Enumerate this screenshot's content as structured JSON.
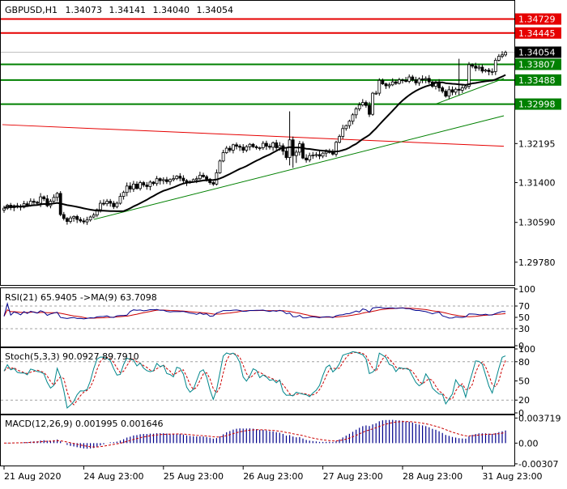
{
  "header": {
    "symbol": "GBPUSD,H1",
    "open": "1.34073",
    "high": "1.34141",
    "low": "1.34040",
    "close": "1.34054"
  },
  "chart_data": [
    {
      "type": "candlestick",
      "panel": "price",
      "ylim": [
        1.293,
        1.351
      ],
      "y_ticks": [
        "1.29780",
        "1.30590",
        "1.31400",
        "1.32195"
      ],
      "price_labels": [
        {
          "value": 1.34729,
          "text": "1.34729",
          "color": "#e60000",
          "kind": "resistance-line"
        },
        {
          "value": 1.34445,
          "text": "1.34445",
          "color": "#e60000",
          "kind": "resistance-line"
        },
        {
          "value": 1.34054,
          "text": "1.34054",
          "color": "#000000",
          "kind": "current-price"
        },
        {
          "value": 1.33807,
          "text": "1.33807",
          "color": "#008000",
          "kind": "support-line"
        },
        {
          "value": 1.33488,
          "text": "1.33488",
          "color": "#008000",
          "kind": "support-line"
        },
        {
          "value": 1.32998,
          "text": "1.32998",
          "color": "#008000",
          "kind": "support-line"
        }
      ],
      "trendlines": [
        {
          "color": "#e60000",
          "from": [
            -0.5,
            1.3258
          ],
          "to": [
            150.5,
            1.3214
          ]
        },
        {
          "color": "#008000",
          "from": [
            27,
            1.3065
          ],
          "to": [
            150.5,
            1.3276
          ]
        },
        {
          "color": "#008000",
          "from": [
            130,
            1.33
          ],
          "to": [
            150.5,
            1.3352
          ]
        }
      ],
      "closes": [
        1.3088,
        1.3094,
        1.3089,
        1.3093,
        1.3092,
        1.309,
        1.3097,
        1.3094,
        1.3102,
        1.31,
        1.3098,
        1.3111,
        1.3107,
        1.3093,
        1.3102,
        1.311,
        1.3118,
        1.3075,
        1.3067,
        1.3061,
        1.3068,
        1.3071,
        1.3065,
        1.3062,
        1.306,
        1.3064,
        1.307,
        1.3074,
        1.3085,
        1.3098,
        1.3097,
        1.3102,
        1.3098,
        1.3091,
        1.3098,
        1.3112,
        1.312,
        1.3133,
        1.3127,
        1.3137,
        1.3128,
        1.314,
        1.3135,
        1.3132,
        1.3141,
        1.3138,
        1.3148,
        1.3144,
        1.3146,
        1.3142,
        1.3146,
        1.3148,
        1.3153,
        1.3149,
        1.3144,
        1.314,
        1.3142,
        1.3146,
        1.3148,
        1.3155,
        1.3152,
        1.3147,
        1.314,
        1.3137,
        1.316,
        1.3184,
        1.3201,
        1.321,
        1.3206,
        1.3217,
        1.3214,
        1.3212,
        1.3206,
        1.3213,
        1.3218,
        1.3213,
        1.3211,
        1.3211,
        1.322,
        1.3214,
        1.3212,
        1.3221,
        1.3211,
        1.3215,
        1.3204,
        1.3191,
        1.3227,
        1.3195,
        1.3202,
        1.3219,
        1.319,
        1.3186,
        1.3195,
        1.3196,
        1.3197,
        1.3194,
        1.32,
        1.3203,
        1.3202,
        1.3198,
        1.3222,
        1.3234,
        1.325,
        1.3256,
        1.3265,
        1.3278,
        1.329,
        1.3298,
        1.3303,
        1.3297,
        1.3279,
        1.3322,
        1.3322,
        1.3348,
        1.3341,
        1.3337,
        1.3339,
        1.3345,
        1.3342,
        1.3349,
        1.3348,
        1.3346,
        1.3355,
        1.3349,
        1.3343,
        1.3351,
        1.335,
        1.3352,
        1.3345,
        1.3336,
        1.3345,
        1.3333,
        1.3326,
        1.3316,
        1.3329,
        1.3324,
        1.333,
        1.3328,
        1.3333,
        1.3336,
        1.338,
        1.3377,
        1.3373,
        1.3375,
        1.3367,
        1.3369,
        1.3366,
        1.3366,
        1.3389,
        1.3397,
        1.34,
        1.3405
      ]
    },
    {
      "type": "line",
      "panel": "rsi",
      "title": "RSI(21) 65.9405   ->MA(9) 63.7098",
      "ylim": [
        0,
        100
      ],
      "y_ticks": [
        "100",
        "70",
        "50",
        "30",
        "0"
      ]
    },
    {
      "type": "line",
      "panel": "stochastic",
      "title": "Stoch(5,3,3) 90.0927 89.7910",
      "ylim": [
        0,
        100
      ],
      "y_ticks": [
        "100",
        "80",
        "50",
        "20",
        "0"
      ]
    },
    {
      "type": "bar",
      "panel": "macd",
      "title": "MACD(12,26,9) 0.001995 0.001646",
      "ylim": [
        -0.0032,
        0.004
      ],
      "y_ticks": [
        "0.003719",
        "0.00",
        "-0.00307"
      ]
    }
  ],
  "x_axis": {
    "labels": [
      {
        "text": "21 Aug 2020",
        "index": 0
      },
      {
        "text": "24 Aug 23:00",
        "index": 24
      },
      {
        "text": "25 Aug 23:00",
        "index": 48
      },
      {
        "text": "26 Aug 23:00",
        "index": 72
      },
      {
        "text": "27 Aug 23:00",
        "index": 96
      },
      {
        "text": "28 Aug 23:00",
        "index": 120
      },
      {
        "text": "31 Aug 23:00",
        "index": 144
      }
    ]
  },
  "colors": {
    "bull": "#ffffff",
    "bear": "#000000",
    "candle_outline": "#000000",
    "ma_line": "#000000",
    "indicator_main": "#00868b",
    "indicator_signal": "#cc0000",
    "macd_hist": "#00008b",
    "grid_dash": "#a0a0a0",
    "axis": "#000000"
  }
}
